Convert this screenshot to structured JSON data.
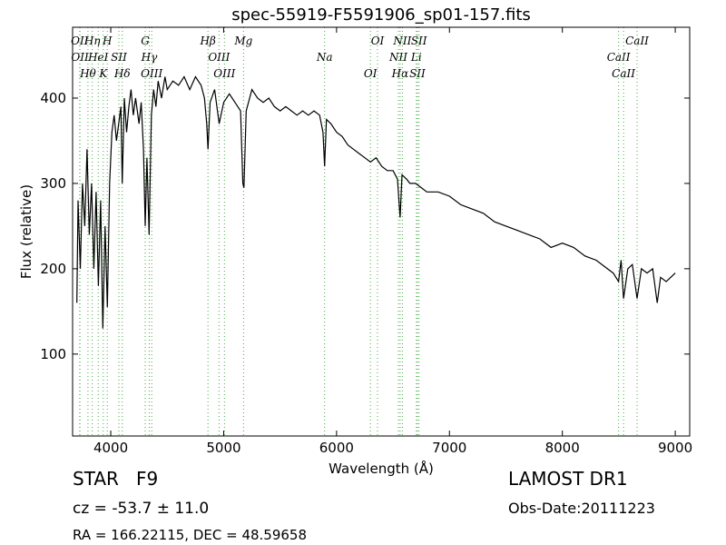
{
  "chart_data": {
    "type": "line",
    "title": "spec-55919-F5591906_sp01-157.fits",
    "x_label": "Wavelength (Å)",
    "y_label": "Flux (relative)",
    "xlim": [
      3662,
      9128
    ],
    "ylim": [
      4,
      483
    ],
    "xticks": [
      4000,
      5000,
      6000,
      7000,
      8000,
      9000
    ],
    "yticks": [
      100,
      200,
      300,
      400
    ],
    "x": [
      3700,
      3710,
      3730,
      3750,
      3770,
      3790,
      3810,
      3830,
      3850,
      3870,
      3890,
      3910,
      3930,
      3950,
      3970,
      3990,
      4010,
      4030,
      4050,
      4070,
      4090,
      4102,
      4120,
      4140,
      4160,
      4180,
      4200,
      4220,
      4250,
      4270,
      4290,
      4305,
      4320,
      4340,
      4360,
      4380,
      4400,
      4420,
      4450,
      4480,
      4500,
      4550,
      4600,
      4650,
      4700,
      4750,
      4800,
      4830,
      4850,
      4861,
      4880,
      4920,
      4960,
      5000,
      5050,
      5100,
      5150,
      5170,
      5180,
      5200,
      5250,
      5300,
      5350,
      5400,
      5450,
      5500,
      5550,
      5600,
      5650,
      5700,
      5750,
      5800,
      5850,
      5880,
      5894,
      5910,
      5950,
      6000,
      6050,
      6100,
      6150,
      6200,
      6250,
      6300,
      6350,
      6400,
      6450,
      6500,
      6540,
      6563,
      6580,
      6620,
      6650,
      6700,
      6750,
      6800,
      6900,
      7000,
      7100,
      7200,
      7300,
      7400,
      7500,
      7600,
      7700,
      7800,
      7900,
      8000,
      8100,
      8200,
      8300,
      8400,
      8450,
      8498,
      8520,
      8542,
      8580,
      8620,
      8662,
      8700,
      8750,
      8800,
      8840,
      8870,
      8920,
      8960,
      9000
    ],
    "series": [
      {
        "name": "flux",
        "color": "#000000",
        "values": [
          160,
          280,
          200,
          300,
          250,
          340,
          240,
          300,
          200,
          290,
          180,
          280,
          130,
          250,
          155,
          300,
          360,
          380,
          350,
          370,
          390,
          300,
          400,
          360,
          390,
          410,
          380,
          400,
          370,
          395,
          340,
          250,
          330,
          240,
          380,
          410,
          390,
          420,
          400,
          425,
          410,
          420,
          415,
          425,
          410,
          425,
          415,
          400,
          370,
          340,
          395,
          410,
          370,
          395,
          405,
          395,
          385,
          300,
          295,
          385,
          410,
          400,
          395,
          400,
          390,
          385,
          390,
          385,
          380,
          385,
          380,
          385,
          380,
          360,
          320,
          375,
          370,
          360,
          355,
          345,
          340,
          335,
          330,
          325,
          330,
          320,
          315,
          315,
          305,
          260,
          310,
          305,
          300,
          300,
          295,
          290,
          290,
          285,
          275,
          270,
          265,
          255,
          250,
          245,
          240,
          235,
          225,
          230,
          225,
          215,
          210,
          200,
          195,
          185,
          210,
          165,
          200,
          205,
          165,
          200,
          195,
          200,
          160,
          190,
          185,
          190,
          195
        ]
      }
    ],
    "line_color": "#44aa44",
    "lines": [
      {
        "name": "OII",
        "wavelength": 3725
      },
      {
        "name": "OII",
        "wavelength": 3727
      },
      {
        "name": "Hθ",
        "wavelength": 3798
      },
      {
        "name": "Hη",
        "wavelength": 3836
      },
      {
        "name": "HeI",
        "wavelength": 3889
      },
      {
        "name": "K",
        "wavelength": 3934
      },
      {
        "name": "H",
        "wavelength": 3969
      },
      {
        "name": "SII",
        "wavelength": 4072
      },
      {
        "name": "Hδ",
        "wavelength": 4102
      },
      {
        "name": "G",
        "wavelength": 4305
      },
      {
        "name": "Hγ",
        "wavelength": 4341
      },
      {
        "name": "OIII",
        "wavelength": 4363
      },
      {
        "name": "Hβ",
        "wavelength": 4861
      },
      {
        "name": "OIII",
        "wavelength": 4959
      },
      {
        "name": "OIII",
        "wavelength": 5007
      },
      {
        "name": "Mg",
        "wavelength": 5176
      },
      {
        "name": "Na",
        "wavelength": 5894
      },
      {
        "name": "OI",
        "wavelength": 6300
      },
      {
        "name": "OI",
        "wavelength": 6363
      },
      {
        "name": "NII",
        "wavelength": 6548
      },
      {
        "name": "Hα",
        "wavelength": 6563
      },
      {
        "name": "NII",
        "wavelength": 6583
      },
      {
        "name": "Li",
        "wavelength": 6707
      },
      {
        "name": "SII",
        "wavelength": 6716
      },
      {
        "name": "SII",
        "wavelength": 6730
      },
      {
        "name": "CaII",
        "wavelength": 8498
      },
      {
        "name": "CaII",
        "wavelength": 8542
      },
      {
        "name": "CaII",
        "wavelength": 8662
      }
    ],
    "annotations": [
      "STAR   F9",
      "cz = -53.7 ± 11.0",
      "RA = 166.22115, DEC = 48.59658",
      "LAMOST DR1",
      "Obs-Date:20111223"
    ]
  }
}
